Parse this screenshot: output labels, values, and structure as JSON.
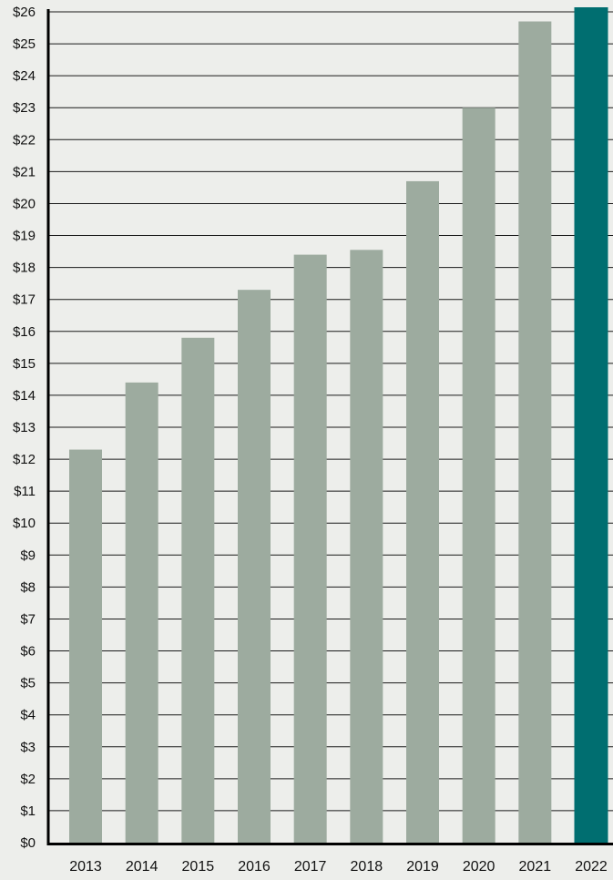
{
  "chart_data": {
    "type": "bar",
    "title": "",
    "xlabel": "",
    "ylabel": "",
    "categories": [
      "2013",
      "2014",
      "2015",
      "2016",
      "2017",
      "2018",
      "2019",
      "2020",
      "2021",
      "2022"
    ],
    "values": [
      12.3,
      14.4,
      15.8,
      17.3,
      18.4,
      18.55,
      20.7,
      23.0,
      25.7,
      26.2
    ],
    "ylim": [
      0,
      26
    ],
    "yticks": [
      "$0",
      "$1",
      "$2",
      "$3",
      "$4",
      "$5",
      "$6",
      "$7",
      "$8",
      "$9",
      "$10",
      "$11",
      "$12",
      "$13",
      "$14",
      "$15",
      "$16",
      "$17",
      "$18",
      "$19",
      "$20",
      "$21",
      "$22",
      "$23",
      "$24",
      "$25",
      "$26"
    ],
    "grid": true,
    "legend": "none",
    "colors": {
      "background": "#edeeeb",
      "bar": "#9dab9f",
      "highlight_bar": "#006e70",
      "grid": "#1a1a1a",
      "axis": "#000000"
    },
    "highlight_category": "2022"
  }
}
